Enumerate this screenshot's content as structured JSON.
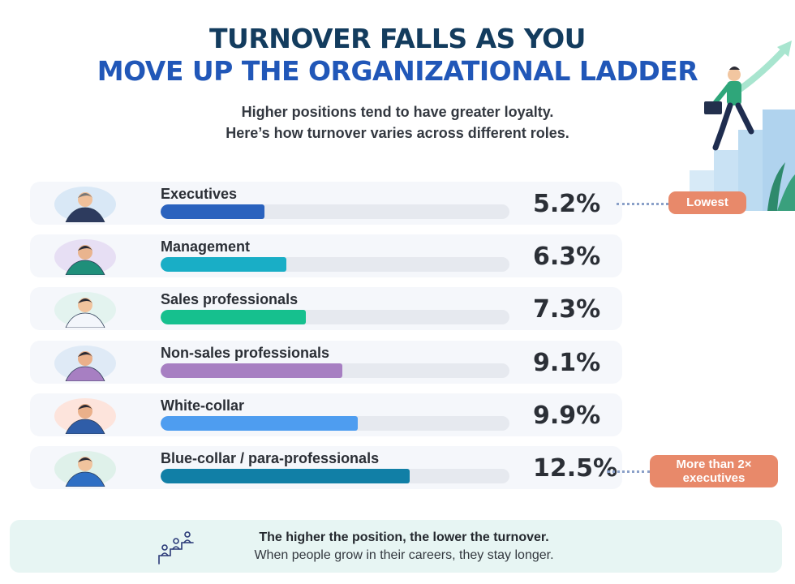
{
  "header": {
    "title_line1": "TURNOVER FALLS AS YOU",
    "title_line2": "MOVE UP THE ORGANIZATIONAL LADDER",
    "subtitle_line1": "Higher positions tend to have greater loyalty.",
    "subtitle_line2": "Here’s how turnover varies across different roles."
  },
  "chart_data": {
    "type": "bar",
    "orientation": "horizontal",
    "categories": [
      "Executives",
      "Management",
      "Sales professionals",
      "Non-sales professionals",
      "White-collar",
      "Blue-collar / para-professionals"
    ],
    "values": [
      5.2,
      6.3,
      7.3,
      9.1,
      9.9,
      12.5
    ],
    "value_labels": [
      "5.2%",
      "6.3%",
      "7.3%",
      "9.1%",
      "9.9%",
      "12.5%"
    ],
    "unit": "%",
    "xlim": [
      0,
      17.5
    ],
    "colors": [
      "#2a62be",
      "#19aec6",
      "#16c08e",
      "#a77fc2",
      "#4e9df0",
      "#117fa6"
    ],
    "avatars": [
      "executive-icon",
      "manager-icon",
      "salesperson-icon",
      "professional-icon",
      "office-worker-icon",
      "mechanic-icon"
    ],
    "annotations": [
      {
        "target": "Executives",
        "text": "Lowest"
      },
      {
        "target": "Blue-collar / para-professionals",
        "text_line1": "More than 2×",
        "text_line2": "executives"
      }
    ]
  },
  "callouts": {
    "lowest": "Lowest",
    "double_line1": "More than 2×",
    "double_line2": "executives",
    "color": "#e8896a"
  },
  "footer": {
    "bold_text": "The higher the position, the lower the turnover.",
    "text": "When people grow in their careers, they stay longer.",
    "icon": "climbing-people-icon"
  }
}
